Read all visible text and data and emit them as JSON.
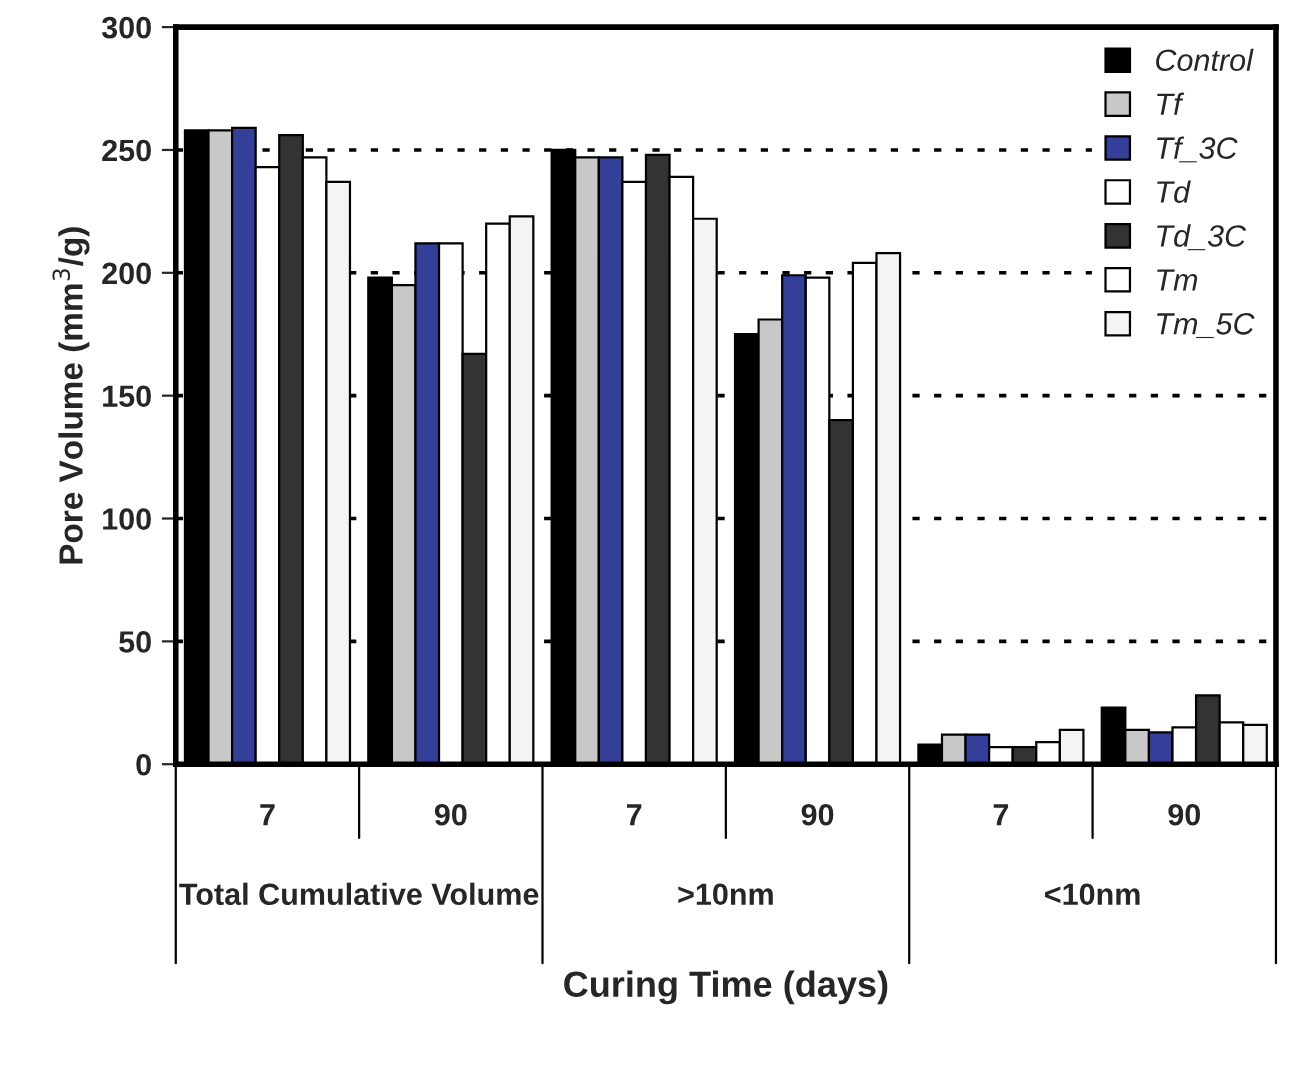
{
  "chart_data": {
    "type": "bar",
    "xlabel": "Curing Time (days)",
    "ylabel": "Pore Volume (mm$^{3}$/g)",
    "categories": [
      "7",
      "90",
      "7",
      "90",
      "7",
      "90"
    ],
    "annotations": [
      "Total Cumulative Volume",
      ">10nm",
      "<10nm"
    ],
    "series": [
      {
        "name": "Control",
        "color": "#000000",
        "values": [
          258,
          198,
          250,
          175,
          8,
          23
        ]
      },
      {
        "name": "Tf",
        "color": "#c8c8c8",
        "values": [
          258,
          195,
          247,
          181,
          12,
          14
        ]
      },
      {
        "name": "Tf_3C",
        "color": "#333f99",
        "values": [
          259,
          212,
          247,
          199,
          12,
          13
        ]
      },
      {
        "name": "Td",
        "color": "#ffffff",
        "values": [
          243,
          212,
          237,
          198,
          7,
          15
        ]
      },
      {
        "name": "Td_3C",
        "color": "#333333",
        "values": [
          256,
          167,
          248,
          140,
          7,
          28
        ]
      },
      {
        "name": "Tm",
        "color": "#ffffff",
        "values": [
          247,
          220,
          239,
          204,
          9,
          17
        ]
      },
      {
        "name": "Tm_5C",
        "color": "#f4f4f4",
        "values": [
          237,
          223,
          222,
          208,
          14,
          16
        ]
      }
    ],
    "ylim": [
      0,
      300
    ],
    "yticks": [
      0,
      50,
      100,
      150,
      200,
      250,
      300
    ],
    "grid": "y",
    "legend": "top right"
  }
}
